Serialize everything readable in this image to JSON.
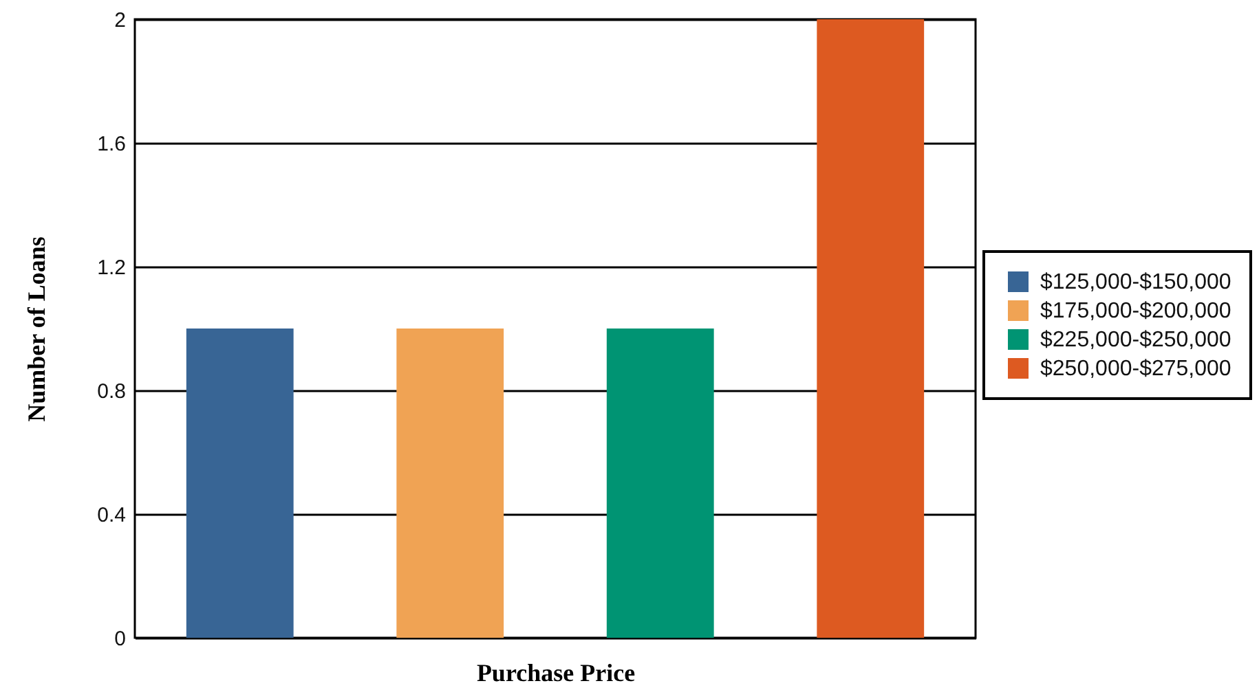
{
  "chart_data": {
    "type": "bar",
    "xlabel": "Purchase Price",
    "ylabel": "Number of Loans",
    "categories": [
      null
    ],
    "series": [
      {
        "name": "$125,000-$150,000",
        "color": "#386595",
        "values": [
          1
        ]
      },
      {
        "name": "$175,000-$200,000",
        "color": "#f0a354",
        "values": [
          1
        ]
      },
      {
        "name": "$225,000-$250,000",
        "color": "#009473",
        "values": [
          1
        ]
      },
      {
        "name": "$250,000-$275,000",
        "color": "#dd5a21",
        "values": [
          2
        ]
      }
    ],
    "ylim": [
      0,
      2
    ],
    "yticks": [
      0,
      0.4,
      0.8,
      1.2,
      1.6,
      2
    ],
    "grid": "y",
    "legend": "right",
    "tick_labels": "y"
  }
}
